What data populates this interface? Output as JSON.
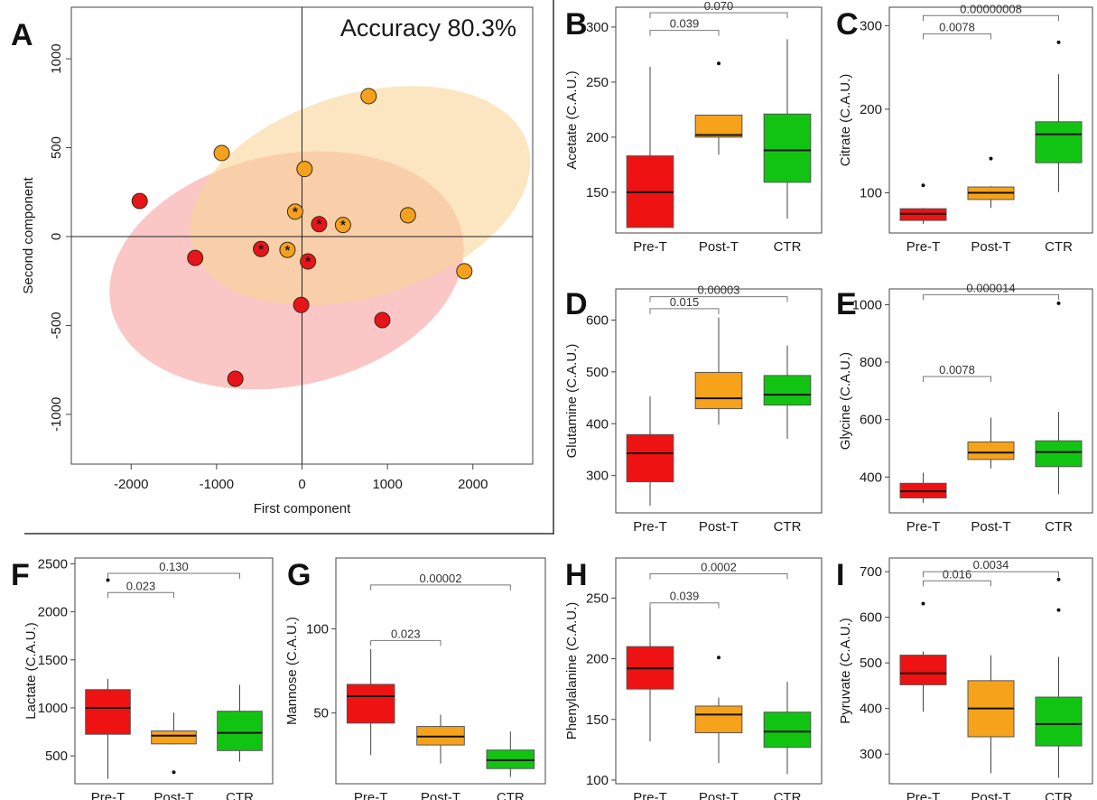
{
  "chart_data": [
    {
      "type": "scatter",
      "panel": "A",
      "annotation": "Accuracy 80.3%",
      "xlabel": "First component",
      "ylabel": "Second component",
      "xlim": [
        -2700,
        2700
      ],
      "ylim": [
        -1280,
        1290
      ],
      "xticks": [
        -2000,
        -1000,
        0,
        1000,
        2000
      ],
      "yticks": [
        -1000,
        -500,
        0,
        500,
        1000
      ],
      "colors": {
        "red": "#e8141b",
        "orange": "#f5a11d",
        "red_ellipse": "#f7a0a0",
        "orange_ellipse": "#f9d598"
      },
      "groups": [
        {
          "color": "red",
          "points": [
            {
              "x": -1900,
              "y": 200,
              "star": false
            },
            {
              "x": -1250,
              "y": -120,
              "star": false
            },
            {
              "x": -780,
              "y": -800,
              "star": false
            },
            {
              "x": -480,
              "y": -70,
              "star": true
            },
            {
              "x": 200,
              "y": 70,
              "star": true
            },
            {
              "x": 70,
              "y": -140,
              "star": true
            },
            {
              "x": -10,
              "y": -385,
              "star": false
            },
            {
              "x": 940,
              "y": -470,
              "star": false
            }
          ],
          "ellipse": {
            "cx": -180,
            "cy": -190,
            "rx": 2100,
            "ry": 650,
            "angle": -12
          }
        },
        {
          "color": "orange",
          "points": [
            {
              "x": -940,
              "y": 470,
              "star": false
            },
            {
              "x": 30,
              "y": 380,
              "star": false
            },
            {
              "x": 780,
              "y": 790,
              "star": false
            },
            {
              "x": -80,
              "y": 140,
              "star": true
            },
            {
              "x": 480,
              "y": 65,
              "star": true
            },
            {
              "x": -170,
              "y": -75,
              "star": true
            },
            {
              "x": 1240,
              "y": 120,
              "star": false
            },
            {
              "x": 1900,
              "y": -195,
              "star": false
            }
          ],
          "ellipse": {
            "cx": 680,
            "cy": 230,
            "rx": 2050,
            "ry": 570,
            "angle": -17
          }
        }
      ]
    },
    {
      "type": "box",
      "panel": "B",
      "ylabel": "Acetate  (C.A.U.)",
      "categories": [
        "Pre-T",
        "Post-T",
        "CTR"
      ],
      "ylim": [
        113,
        318
      ],
      "yticks": [
        150,
        200,
        250,
        300
      ],
      "boxes": [
        {
          "min": 118,
          "q1": 118,
          "median": 150,
          "q3": 183,
          "max": 264,
          "outliers": []
        },
        {
          "min": 184,
          "q1": 200,
          "median": 202,
          "q3": 220,
          "max": 220,
          "outliers": [
            267
          ]
        },
        {
          "min": 126,
          "q1": 159,
          "median": 188,
          "q3": 221,
          "max": 289,
          "outliers": []
        }
      ],
      "brackets": [
        {
          "from": 0,
          "to": 1,
          "y": 297,
          "label": "0.039"
        },
        {
          "from": 0,
          "to": 2,
          "y": 313,
          "label": "0.070"
        }
      ]
    },
    {
      "type": "box",
      "panel": "C",
      "ylabel": "Citrate  (C.A.U.)",
      "categories": [
        "Pre-T",
        "Post-T",
        "CTR"
      ],
      "ylim": [
        52,
        322
      ],
      "yticks": [
        100,
        200,
        300
      ],
      "boxes": [
        {
          "min": 63,
          "q1": 67,
          "median": 75,
          "q3": 81,
          "max": 82,
          "outliers": [
            109
          ]
        },
        {
          "min": 82,
          "q1": 92,
          "median": 100,
          "q3": 107,
          "max": 108,
          "outliers": [
            141
          ]
        },
        {
          "min": 101,
          "q1": 136,
          "median": 170,
          "q3": 185,
          "max": 242,
          "outliers": [
            280
          ]
        }
      ],
      "brackets": [
        {
          "from": 0,
          "to": 1,
          "y": 290,
          "label": "0.0078"
        },
        {
          "from": 0,
          "to": 2,
          "y": 312,
          "label": "0.00000008"
        }
      ]
    },
    {
      "type": "box",
      "panel": "D",
      "ylabel": "Glutamine  (C.A.U.)",
      "categories": [
        "Pre-T",
        "Post-T",
        "CTR"
      ],
      "ylim": [
        228,
        660
      ],
      "yticks": [
        300,
        400,
        500,
        600
      ],
      "boxes": [
        {
          "min": 242,
          "q1": 288,
          "median": 343,
          "q3": 379,
          "max": 453,
          "outliers": []
        },
        {
          "min": 398,
          "q1": 429,
          "median": 449,
          "q3": 499,
          "max": 605,
          "outliers": []
        },
        {
          "min": 371,
          "q1": 436,
          "median": 456,
          "q3": 493,
          "max": 551,
          "outliers": []
        }
      ],
      "brackets": [
        {
          "from": 0,
          "to": 1,
          "y": 622,
          "label": "0.015"
        },
        {
          "from": 0,
          "to": 2,
          "y": 645,
          "label": "0.00003"
        }
      ]
    },
    {
      "type": "box",
      "panel": "E",
      "ylabel": "Glycine  (C.A.U.)",
      "categories": [
        "Pre-T",
        "Post-T",
        "CTR"
      ],
      "ylim": [
        275,
        1055
      ],
      "yticks": [
        400,
        600,
        800,
        1000
      ],
      "boxes": [
        {
          "min": 310,
          "q1": 327,
          "median": 350,
          "q3": 378,
          "max": 415,
          "outliers": []
        },
        {
          "min": 430,
          "q1": 461,
          "median": 485,
          "q3": 522,
          "max": 607,
          "outliers": []
        },
        {
          "min": 340,
          "q1": 436,
          "median": 487,
          "q3": 526,
          "max": 627,
          "outliers": [
            1005
          ]
        }
      ],
      "brackets": [
        {
          "from": 0,
          "to": 1,
          "y": 750,
          "label": "0.0078"
        },
        {
          "from": 0,
          "to": 2,
          "y": 1035,
          "label": "0.000014"
        }
      ]
    },
    {
      "type": "box",
      "panel": "F",
      "ylabel": "Lactate  (C.A.U.)",
      "categories": [
        "Pre-T",
        "Post-T",
        "CTR"
      ],
      "ylim": [
        210,
        2560
      ],
      "yticks": [
        500,
        1000,
        1500,
        2000,
        2500
      ],
      "boxes": [
        {
          "min": 260,
          "q1": 725,
          "median": 1000,
          "q3": 1190,
          "max": 1300,
          "outliers": [
            2330
          ]
        },
        {
          "min": 620,
          "q1": 625,
          "median": 710,
          "q3": 760,
          "max": 950,
          "outliers": [
            330
          ]
        },
        {
          "min": 440,
          "q1": 555,
          "median": 740,
          "q3": 965,
          "max": 1240,
          "outliers": []
        }
      ],
      "brackets": [
        {
          "from": 0,
          "to": 1,
          "y": 2200,
          "label": "0.023"
        },
        {
          "from": 0,
          "to": 2,
          "y": 2400,
          "label": "0.130"
        }
      ]
    },
    {
      "type": "box",
      "panel": "G",
      "ylabel": "Mannose  (C.A.U.)",
      "categories": [
        "Pre-T",
        "Post-T",
        "CTR"
      ],
      "ylim": [
        8,
        142
      ],
      "yticks": [
        50,
        100
      ],
      "boxes": [
        {
          "min": 25,
          "q1": 44,
          "median": 60,
          "q3": 67,
          "max": 88,
          "outliers": []
        },
        {
          "min": 20,
          "q1": 31,
          "median": 36,
          "q3": 42,
          "max": 49,
          "outliers": []
        },
        {
          "min": 12,
          "q1": 17,
          "median": 22,
          "q3": 28,
          "max": 39,
          "outliers": []
        }
      ],
      "brackets": [
        {
          "from": 0,
          "to": 1,
          "y": 93,
          "label": "0.023"
        },
        {
          "from": 0,
          "to": 2,
          "y": 126,
          "label": "0.00002"
        }
      ]
    },
    {
      "type": "box",
      "panel": "H",
      "ylabel": "Phenylalanine  (C.A.U.)",
      "categories": [
        "Pre-T",
        "Post-T",
        "CTR"
      ],
      "ylim": [
        97,
        283
      ],
      "yticks": [
        100,
        150,
        200,
        250
      ],
      "boxes": [
        {
          "min": 132,
          "q1": 175,
          "median": 192,
          "q3": 210,
          "max": 243,
          "outliers": []
        },
        {
          "min": 114,
          "q1": 139,
          "median": 154,
          "q3": 161,
          "max": 168,
          "outliers": [
            201
          ]
        },
        {
          "min": 105,
          "q1": 127,
          "median": 140,
          "q3": 156,
          "max": 181,
          "outliers": []
        }
      ],
      "brackets": [
        {
          "from": 0,
          "to": 1,
          "y": 246,
          "label": "0.039"
        },
        {
          "from": 0,
          "to": 2,
          "y": 270,
          "label": "0.0002"
        }
      ]
    },
    {
      "type": "box",
      "panel": "I",
      "ylabel": "Pyruvate  (C.A.U.)",
      "categories": [
        "Pre-T",
        "Post-T",
        "CTR"
      ],
      "ylim": [
        235,
        730
      ],
      "yticks": [
        300,
        400,
        500,
        600,
        700
      ],
      "boxes": [
        {
          "min": 393,
          "q1": 452,
          "median": 477,
          "q3": 517,
          "max": 525,
          "outliers": [
            630
          ]
        },
        {
          "min": 258,
          "q1": 338,
          "median": 400,
          "q3": 461,
          "max": 517,
          "outliers": []
        },
        {
          "min": 248,
          "q1": 318,
          "median": 366,
          "q3": 425,
          "max": 513,
          "outliers": [
            616,
            683
          ]
        }
      ],
      "brackets": [
        {
          "from": 0,
          "to": 1,
          "y": 680,
          "label": "0.016"
        },
        {
          "from": 0,
          "to": 2,
          "y": 700,
          "label": "0.0034"
        }
      ]
    }
  ],
  "style": {
    "box_colors": [
      "#ee1212",
      "#f7a21b",
      "#12c412"
    ],
    "axis_color": "#333333"
  }
}
